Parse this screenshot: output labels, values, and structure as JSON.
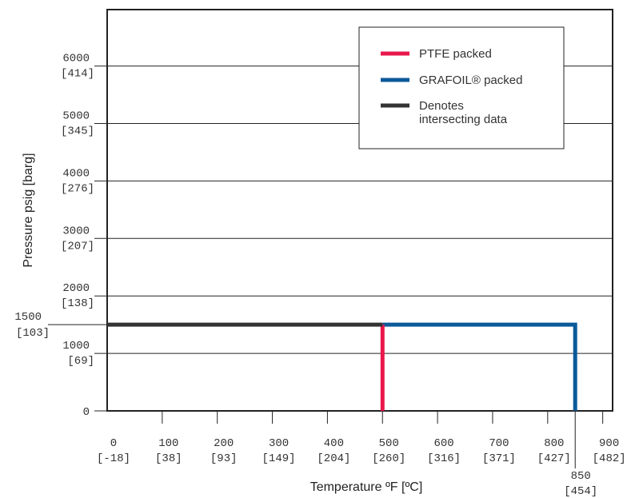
{
  "chart_data": {
    "type": "line",
    "title": "",
    "xlabel": "Temperature ºF [ºC]",
    "ylabel": "Pressure psig [barg]",
    "xlim": [
      0,
      900
    ],
    "ylim": [
      0,
      7000
    ],
    "x_ticks": [
      {
        "value": 0,
        "label": "0",
        "sublabel": "[-18]"
      },
      {
        "value": 100,
        "label": "100",
        "sublabel": "[38]"
      },
      {
        "value": 200,
        "label": "200",
        "sublabel": "[93]"
      },
      {
        "value": 300,
        "label": "300",
        "sublabel": "[149]"
      },
      {
        "value": 400,
        "label": "400",
        "sublabel": "[204]"
      },
      {
        "value": 500,
        "label": "500",
        "sublabel": "[260]"
      },
      {
        "value": 600,
        "label": "600",
        "sublabel": "[316]"
      },
      {
        "value": 700,
        "label": "700",
        "sublabel": "[371]"
      },
      {
        "value": 800,
        "label": "800",
        "sublabel": "[427]"
      },
      {
        "value": 900,
        "label": "900",
        "sublabel": "[482]"
      }
    ],
    "x_extra_label": {
      "value": 850,
      "label": "850",
      "sublabel": "[454]"
    },
    "y_ticks": [
      {
        "value": 0,
        "label": "0",
        "sublabel": ""
      },
      {
        "value": 1000,
        "label": "1000",
        "sublabel": "[69]"
      },
      {
        "value": 2000,
        "label": "2000",
        "sublabel": "[138]"
      },
      {
        "value": 3000,
        "label": "3000",
        "sublabel": "[207]"
      },
      {
        "value": 4000,
        "label": "4000",
        "sublabel": "[276]"
      },
      {
        "value": 5000,
        "label": "5000",
        "sublabel": "[345]"
      },
      {
        "value": 6000,
        "label": "6000",
        "sublabel": "[414]"
      }
    ],
    "y_extra_label": {
      "value": 1500,
      "label": "1500",
      "sublabel": "[103]"
    },
    "grid": "horizontal",
    "legend_position": "top-right",
    "series": [
      {
        "name": "Denotes intersecting data",
        "color": "#333333",
        "points": [
          [
            0,
            1500
          ],
          [
            500,
            1500
          ]
        ]
      },
      {
        "name": "PTFE packed",
        "color": "#e8174b",
        "points": [
          [
            500,
            1500
          ],
          [
            500,
            0
          ]
        ]
      },
      {
        "name": "GRAFOIL® packed",
        "color": "#0b5a99",
        "points": [
          [
            500,
            1500
          ],
          [
            850,
            1500
          ],
          [
            850,
            0
          ]
        ]
      }
    ],
    "legend": [
      {
        "label": "PTFE packed",
        "color": "#e8174b"
      },
      {
        "label": "GRAFOIL® packed",
        "color": "#0b5a99"
      },
      {
        "label": "Denotes intersecting data",
        "color": "#333333"
      }
    ]
  }
}
